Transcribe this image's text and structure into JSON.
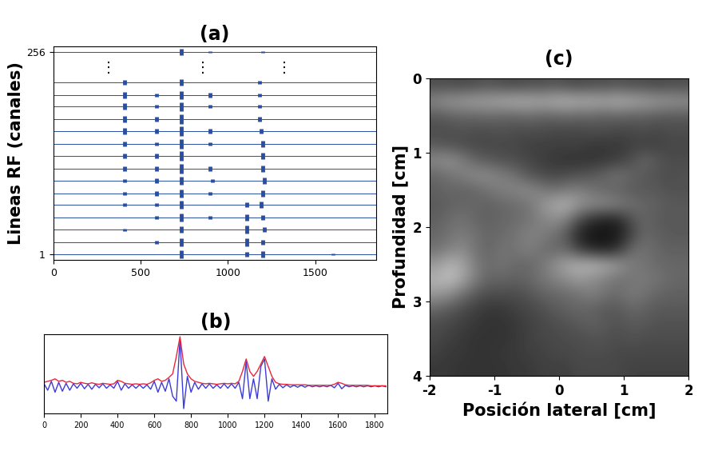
{
  "chart_data": [
    {
      "type": "multitrace",
      "title": "(a)",
      "y_label": "Lineas RF (canales)",
      "xlim": [
        0,
        1850
      ],
      "xticks": [
        0,
        500,
        1000,
        1500
      ],
      "ylim": [
        -6,
        263
      ],
      "yticks": [
        1,
        256
      ],
      "color": "#2b4fa0",
      "traces": [
        {
          "channel": 1,
          "echoes": [
            [
              735,
              5
            ],
            [
              1110,
              3
            ],
            [
              1200,
              4
            ],
            [
              1600,
              1
            ]
          ]
        },
        {
          "channel": 16,
          "echoes": [
            [
              590,
              2
            ],
            [
              735,
              5
            ],
            [
              1110,
              5
            ],
            [
              1200,
              3
            ]
          ]
        },
        {
          "channel": 32,
          "echoes": [
            [
              410,
              1.5
            ],
            [
              735,
              4
            ],
            [
              1110,
              5
            ],
            [
              1210,
              3
            ]
          ]
        },
        {
          "channel": 47,
          "echoes": [
            [
              590,
              2
            ],
            [
              735,
              5
            ],
            [
              900,
              2
            ],
            [
              1110,
              4
            ],
            [
              1200,
              3
            ]
          ]
        },
        {
          "channel": 63,
          "echoes": [
            [
              410,
              2
            ],
            [
              590,
              2
            ],
            [
              735,
              5
            ],
            [
              1110,
              3
            ],
            [
              1190,
              4
            ]
          ]
        },
        {
          "channel": 78,
          "echoes": [
            [
              410,
              2
            ],
            [
              590,
              3
            ],
            [
              735,
              5
            ],
            [
              900,
              2
            ],
            [
              1200,
              4
            ]
          ]
        },
        {
          "channel": 94,
          "echoes": [
            [
              410,
              2
            ],
            [
              590,
              3
            ],
            [
              735,
              5
            ],
            [
              910,
              2
            ],
            [
              1210,
              4
            ]
          ]
        },
        {
          "channel": 109,
          "echoes": [
            [
              410,
              3
            ],
            [
              590,
              3
            ],
            [
              735,
              6
            ],
            [
              900,
              3
            ],
            [
              1200,
              4
            ]
          ]
        },
        {
          "channel": 125,
          "echoes": [
            [
              410,
              3
            ],
            [
              590,
              3
            ],
            [
              735,
              6
            ],
            [
              1200,
              4
            ]
          ]
        },
        {
          "channel": 140,
          "echoes": [
            [
              410,
              3
            ],
            [
              590,
              2
            ],
            [
              735,
              6
            ],
            [
              900,
              2
            ],
            [
              1200,
              4
            ]
          ]
        },
        {
          "channel": 156,
          "echoes": [
            [
              410,
              4
            ],
            [
              590,
              3
            ],
            [
              735,
              6
            ],
            [
              900,
              3
            ],
            [
              1190,
              3
            ]
          ]
        },
        {
          "channel": 171,
          "echoes": [
            [
              410,
              4
            ],
            [
              590,
              3
            ],
            [
              735,
              6
            ],
            [
              1180,
              3
            ]
          ]
        },
        {
          "channel": 187,
          "echoes": [
            [
              410,
              4
            ],
            [
              590,
              2
            ],
            [
              735,
              6
            ],
            [
              900,
              2
            ],
            [
              1180,
              2
            ]
          ]
        },
        {
          "channel": 202,
          "echoes": [
            [
              410,
              4
            ],
            [
              590,
              2
            ],
            [
              735,
              5
            ],
            [
              900,
              3
            ],
            [
              1180,
              2
            ]
          ]
        },
        {
          "channel": 218,
          "echoes": [
            [
              410,
              3
            ],
            [
              735,
              4
            ],
            [
              1180,
              2
            ]
          ]
        },
        {
          "channel": 256,
          "echoes": [
            [
              735,
              4
            ],
            [
              900,
              1
            ],
            [
              1200,
              1
            ]
          ]
        }
      ],
      "annotations": [
        {
          "text": "⋮",
          "x": 315,
          "y": 236
        },
        {
          "text": "⋮",
          "x": 857,
          "y": 236
        },
        {
          "text": "⋮",
          "x": 1323,
          "y": 236
        }
      ]
    },
    {
      "type": "line",
      "title": "(b)",
      "x": [
        0,
        20,
        40,
        60,
        80,
        100,
        120,
        140,
        160,
        180,
        200,
        220,
        240,
        260,
        280,
        300,
        320,
        340,
        360,
        380,
        400,
        420,
        440,
        460,
        480,
        500,
        520,
        540,
        560,
        580,
        600,
        620,
        640,
        660,
        680,
        700,
        720,
        740,
        760,
        780,
        800,
        820,
        840,
        860,
        880,
        900,
        920,
        940,
        960,
        980,
        1000,
        1020,
        1040,
        1060,
        1080,
        1100,
        1120,
        1140,
        1160,
        1180,
        1200,
        1220,
        1240,
        1260,
        1280,
        1300,
        1320,
        1340,
        1360,
        1380,
        1400,
        1420,
        1440,
        1460,
        1480,
        1500,
        1520,
        1540,
        1560,
        1580,
        1600,
        1620,
        1640,
        1660,
        1680,
        1700,
        1720,
        1740,
        1760,
        1780,
        1800,
        1820,
        1840,
        1860
      ],
      "series": [
        {
          "color": "#3b3bd6",
          "values": [
            0.05,
            -0.08,
            0.1,
            -0.12,
            0.08,
            -0.1,
            0.06,
            -0.08,
            0.05,
            -0.04,
            0.06,
            -0.05,
            0.04,
            -0.06,
            0.04,
            -0.03,
            0.05,
            -0.04,
            0.03,
            -0.04,
            0.1,
            -0.08,
            0.05,
            -0.04,
            0.03,
            -0.04,
            0.03,
            -0.04,
            0.03,
            -0.06,
            0.1,
            -0.12,
            0.08,
            -0.1,
            0.15,
            -0.2,
            -0.3,
            0.95,
            -0.45,
            0.2,
            -0.12,
            0.08,
            -0.06,
            0.05,
            -0.04,
            0.05,
            -0.04,
            0.03,
            -0.04,
            0.05,
            -0.04,
            0.05,
            -0.04,
            0.08,
            -0.25,
            0.5,
            -0.25,
            0.15,
            -0.25,
            0.4,
            0.55,
            -0.3,
            0.15,
            -0.06,
            0.04,
            -0.03,
            0.03,
            -0.02,
            0.02,
            -0.02,
            0.02,
            -0.02,
            0.02,
            -0.01,
            0.01,
            -0.01,
            0.01,
            -0.01,
            0.02,
            -0.03,
            0.06,
            -0.05,
            0.02,
            -0.01,
            0.01,
            -0.01,
            0.01,
            -0.01,
            0.01,
            -0.01,
            0.01,
            -0.01,
            0.01,
            -0.01
          ]
        },
        {
          "color": "#e8283c",
          "values": [
            0.08,
            0.1,
            0.12,
            0.15,
            0.1,
            0.12,
            0.08,
            0.1,
            0.06,
            0.05,
            0.08,
            0.06,
            0.05,
            0.07,
            0.05,
            0.04,
            0.06,
            0.05,
            0.04,
            0.05,
            0.12,
            0.1,
            0.06,
            0.05,
            0.04,
            0.05,
            0.04,
            0.05,
            0.04,
            0.07,
            0.12,
            0.15,
            0.1,
            0.12,
            0.18,
            0.25,
            0.6,
            1.0,
            0.45,
            0.25,
            0.15,
            0.1,
            0.08,
            0.06,
            0.05,
            0.06,
            0.05,
            0.04,
            0.05,
            0.06,
            0.05,
            0.06,
            0.05,
            0.1,
            0.3,
            0.55,
            0.3,
            0.2,
            0.3,
            0.45,
            0.6,
            0.4,
            0.2,
            0.08,
            0.05,
            0.04,
            0.04,
            0.03,
            0.03,
            0.03,
            0.03,
            0.03,
            0.02,
            0.02,
            0.02,
            0.02,
            0.02,
            0.02,
            0.02,
            0.04,
            0.08,
            0.06,
            0.03,
            0.02,
            0.02,
            0.02,
            0.02,
            0.02,
            0.02,
            0.01,
            0.01,
            0.01,
            0.01,
            0.01
          ]
        }
      ],
      "xlim": [
        0,
        1870
      ],
      "xticks": [
        0,
        200,
        400,
        600,
        800,
        1000,
        1200,
        1400,
        1600,
        1800
      ],
      "ylim": [
        -0.55,
        1.05
      ],
      "tick_labels": "x"
    },
    {
      "type": "image",
      "title": "(c)",
      "x_label": "Posición lateral [cm]",
      "y_label": "Profundidad [cm]",
      "xlim": [
        -2,
        2
      ],
      "xticks": [
        -2,
        -1,
        0,
        1,
        2
      ],
      "ylim": [
        4,
        0
      ],
      "yticks": [
        0,
        1,
        2,
        3,
        4
      ],
      "color": "gray",
      "value_range": [
        0,
        100
      ],
      "cells": [
        [
          30,
          30,
          28,
          30,
          32,
          30,
          28,
          30,
          30,
          32,
          30,
          28,
          30,
          30,
          32,
          30,
          30,
          28,
          30,
          30
        ],
        [
          55,
          60,
          62,
          65,
          65,
          68,
          70,
          70,
          68,
          70,
          72,
          70,
          70,
          68,
          70,
          68,
          65,
          62,
          60,
          58
        ],
        [
          35,
          38,
          40,
          40,
          42,
          40,
          40,
          42,
          40,
          40,
          42,
          40,
          40,
          38,
          40,
          38,
          38,
          36,
          35,
          35
        ],
        [
          30,
          30,
          32,
          30,
          30,
          32,
          30,
          30,
          30,
          28,
          28,
          28,
          30,
          30,
          28,
          28,
          30,
          28,
          30,
          30
        ],
        [
          35,
          32,
          30,
          28,
          28,
          28,
          28,
          25,
          25,
          25,
          25,
          25,
          22,
          22,
          22,
          25,
          25,
          25,
          28,
          28
        ],
        [
          55,
          58,
          50,
          40,
          35,
          32,
          30,
          28,
          25,
          22,
          20,
          20,
          20,
          22,
          25,
          30,
          40,
          35,
          30,
          30
        ],
        [
          40,
          45,
          50,
          55,
          55,
          50,
          45,
          35,
          30,
          28,
          30,
          32,
          35,
          40,
          45,
          40,
          35,
          32,
          30,
          32
        ],
        [
          38,
          40,
          38,
          40,
          45,
          50,
          52,
          55,
          50,
          45,
          48,
          50,
          45,
          40,
          38,
          35,
          35,
          35,
          32,
          32
        ],
        [
          35,
          38,
          40,
          40,
          38,
          40,
          42,
          45,
          55,
          65,
          70,
          60,
          55,
          55,
          50,
          45,
          40,
          38,
          35,
          35
        ],
        [
          38,
          42,
          45,
          40,
          38,
          40,
          42,
          45,
          50,
          55,
          50,
          30,
          18,
          12,
          15,
          30,
          40,
          35,
          35,
          35
        ],
        [
          40,
          45,
          48,
          45,
          40,
          42,
          45,
          50,
          50,
          45,
          35,
          15,
          8,
          8,
          10,
          25,
          40,
          38,
          35,
          35
        ],
        [
          45,
          50,
          55,
          45,
          40,
          45,
          45,
          50,
          45,
          40,
          40,
          25,
          15,
          12,
          20,
          40,
          45,
          40,
          38,
          38
        ],
        [
          60,
          70,
          65,
          50,
          42,
          45,
          42,
          40,
          45,
          55,
          65,
          70,
          72,
          68,
          60,
          50,
          45,
          42,
          40,
          40
        ],
        [
          70,
          75,
          65,
          50,
          40,
          40,
          38,
          40,
          45,
          50,
          55,
          60,
          55,
          50,
          45,
          45,
          48,
          45,
          42,
          40
        ],
        [
          60,
          55,
          45,
          35,
          30,
          30,
          30,
          32,
          38,
          40,
          42,
          45,
          50,
          45,
          42,
          48,
          45,
          40,
          38,
          38
        ],
        [
          40,
          35,
          30,
          25,
          22,
          22,
          25,
          28,
          30,
          35,
          38,
          40,
          38,
          35,
          35,
          40,
          38,
          35,
          35,
          35
        ],
        [
          30,
          28,
          25,
          22,
          20,
          20,
          22,
          25,
          28,
          30,
          32,
          35,
          38,
          35,
          32,
          35,
          35,
          32,
          32,
          32
        ],
        [
          28,
          25,
          22,
          20,
          20,
          20,
          22,
          25,
          28,
          28,
          30,
          30,
          32,
          32,
          30,
          32,
          30,
          30,
          30,
          30
        ],
        [
          25,
          22,
          22,
          20,
          20,
          22,
          22,
          25,
          25,
          28,
          28,
          30,
          30,
          30,
          28,
          28,
          28,
          28,
          28,
          28
        ],
        [
          22,
          22,
          20,
          20,
          20,
          20,
          22,
          22,
          25,
          25,
          25,
          28,
          28,
          28,
          28,
          26,
          26,
          26,
          26,
          26
        ]
      ]
    }
  ]
}
